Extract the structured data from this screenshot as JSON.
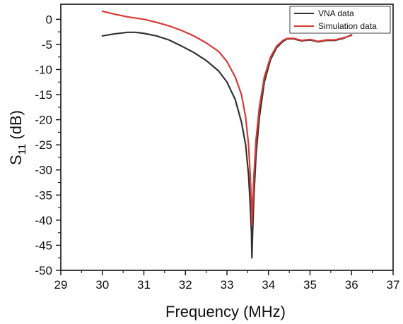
{
  "chart_data": {
    "type": "line",
    "xlabel": "Frequency (MHz)",
    "ylabel": {
      "base": "S",
      "sub": "11",
      "rest": " (dB)"
    },
    "xlim": [
      29,
      37
    ],
    "ylim": [
      -50,
      3
    ],
    "xticks": [
      29,
      30,
      31,
      32,
      33,
      34,
      35,
      36,
      37
    ],
    "yticks": [
      0,
      -5,
      -10,
      -15,
      -20,
      -25,
      -30,
      -35,
      -40,
      -45,
      -50
    ],
    "grid": false,
    "legend_position": "top-right",
    "series": [
      {
        "name": "VNA data",
        "color": "#333333",
        "points": [
          [
            30.0,
            -3.3
          ],
          [
            30.3,
            -2.9
          ],
          [
            30.6,
            -2.6
          ],
          [
            30.8,
            -2.6
          ],
          [
            31.0,
            -2.8
          ],
          [
            31.3,
            -3.3
          ],
          [
            31.6,
            -4.1
          ],
          [
            31.9,
            -5.3
          ],
          [
            32.2,
            -6.6
          ],
          [
            32.5,
            -8.2
          ],
          [
            32.8,
            -10.3
          ],
          [
            33.0,
            -12.5
          ],
          [
            33.2,
            -16.0
          ],
          [
            33.35,
            -20.5
          ],
          [
            33.45,
            -25.0
          ],
          [
            33.52,
            -31.0
          ],
          [
            33.56,
            -37.0
          ],
          [
            33.59,
            -42.5
          ],
          [
            33.6,
            -47.5
          ],
          [
            33.62,
            -42.0
          ],
          [
            33.65,
            -35.0
          ],
          [
            33.7,
            -27.0
          ],
          [
            33.78,
            -19.5
          ],
          [
            33.9,
            -12.5
          ],
          [
            34.05,
            -8.0
          ],
          [
            34.2,
            -5.6
          ],
          [
            34.35,
            -4.4
          ],
          [
            34.45,
            -3.9
          ],
          [
            34.6,
            -3.9
          ],
          [
            34.8,
            -4.3
          ],
          [
            35.0,
            -4.1
          ],
          [
            35.2,
            -4.5
          ],
          [
            35.4,
            -4.2
          ],
          [
            35.6,
            -4.2
          ],
          [
            35.8,
            -3.8
          ],
          [
            36.0,
            -3.1
          ]
        ]
      },
      {
        "name": "Simulation data",
        "color": "#d83a35",
        "points": [
          [
            30.0,
            1.6
          ],
          [
            30.3,
            1.0
          ],
          [
            30.6,
            0.5
          ],
          [
            31.0,
            0.0
          ],
          [
            31.3,
            -0.6
          ],
          [
            31.6,
            -1.3
          ],
          [
            31.9,
            -2.2
          ],
          [
            32.2,
            -3.3
          ],
          [
            32.5,
            -4.7
          ],
          [
            32.8,
            -6.4
          ],
          [
            33.0,
            -8.4
          ],
          [
            33.2,
            -11.5
          ],
          [
            33.35,
            -15.0
          ],
          [
            33.45,
            -19.5
          ],
          [
            33.52,
            -25.0
          ],
          [
            33.56,
            -31.0
          ],
          [
            33.59,
            -36.5
          ],
          [
            33.6,
            -41.0
          ],
          [
            33.62,
            -37.0
          ],
          [
            33.65,
            -31.0
          ],
          [
            33.7,
            -24.0
          ],
          [
            33.78,
            -17.5
          ],
          [
            33.9,
            -11.5
          ],
          [
            34.05,
            -7.5
          ],
          [
            34.2,
            -5.3
          ],
          [
            34.35,
            -4.2
          ],
          [
            34.45,
            -3.8
          ],
          [
            34.6,
            -3.8
          ],
          [
            34.8,
            -4.2
          ],
          [
            35.0,
            -4.0
          ],
          [
            35.2,
            -4.4
          ],
          [
            35.4,
            -4.1
          ],
          [
            35.6,
            -4.1
          ],
          [
            35.8,
            -3.7
          ],
          [
            36.0,
            -3.2
          ]
        ]
      }
    ]
  }
}
